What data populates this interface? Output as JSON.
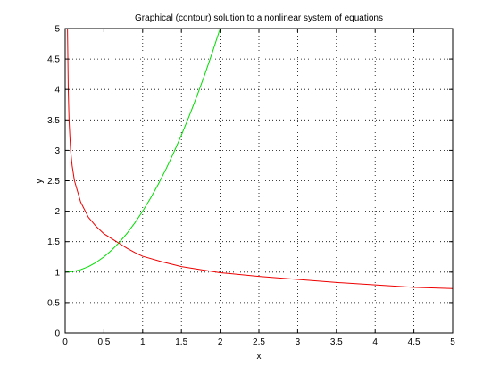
{
  "chart_data": {
    "type": "line",
    "title": "Graphical (contour) solution to a nonlinear system of equations",
    "xlabel": "x",
    "ylabel": "y",
    "xlim": [
      0,
      5
    ],
    "ylim": [
      0,
      5
    ],
    "grid": true,
    "x_ticks": [
      "0",
      "0.5",
      "1",
      "1.5",
      "2",
      "2.5",
      "3",
      "3.5",
      "4",
      "4.5",
      "5"
    ],
    "y_ticks": [
      "0",
      "0.5",
      "1",
      "1.5",
      "2",
      "2.5",
      "3",
      "3.5",
      "4",
      "4.5",
      "5"
    ],
    "series": [
      {
        "color": "#00dd00",
        "points": [
          [
            0,
            1.0
          ],
          [
            0.1,
            1.01
          ],
          [
            0.2,
            1.04
          ],
          [
            0.3,
            1.09
          ],
          [
            0.4,
            1.16
          ],
          [
            0.5,
            1.25
          ],
          [
            0.6,
            1.36
          ],
          [
            0.7,
            1.49
          ],
          [
            0.8,
            1.64
          ],
          [
            0.9,
            1.81
          ],
          [
            1.0,
            2.0
          ],
          [
            1.1,
            2.21
          ],
          [
            1.2,
            2.44
          ],
          [
            1.3,
            2.69
          ],
          [
            1.4,
            2.96
          ],
          [
            1.5,
            3.25
          ],
          [
            1.6,
            3.56
          ],
          [
            1.7,
            3.89
          ],
          [
            1.8,
            4.24
          ],
          [
            1.9,
            4.61
          ],
          [
            2.0,
            5.0
          ]
        ]
      },
      {
        "color": "#ee0000",
        "points": [
          [
            0.03,
            5.0
          ],
          [
            0.035,
            4.5
          ],
          [
            0.04,
            4.0
          ],
          [
            0.05,
            3.5
          ],
          [
            0.07,
            3.0
          ],
          [
            0.09,
            2.75
          ],
          [
            0.12,
            2.5
          ],
          [
            0.2,
            2.15
          ],
          [
            0.3,
            1.9
          ],
          [
            0.4,
            1.75
          ],
          [
            0.5,
            1.63
          ],
          [
            0.6,
            1.55
          ],
          [
            0.7,
            1.47
          ],
          [
            0.8,
            1.39
          ],
          [
            0.9,
            1.32
          ],
          [
            1.0,
            1.26
          ],
          [
            1.25,
            1.17
          ],
          [
            1.5,
            1.09
          ],
          [
            2.0,
            0.99
          ],
          [
            2.5,
            0.93
          ],
          [
            3.0,
            0.88
          ],
          [
            3.5,
            0.83
          ],
          [
            4.0,
            0.79
          ],
          [
            4.5,
            0.75
          ],
          [
            5.0,
            0.73
          ]
        ]
      }
    ]
  }
}
